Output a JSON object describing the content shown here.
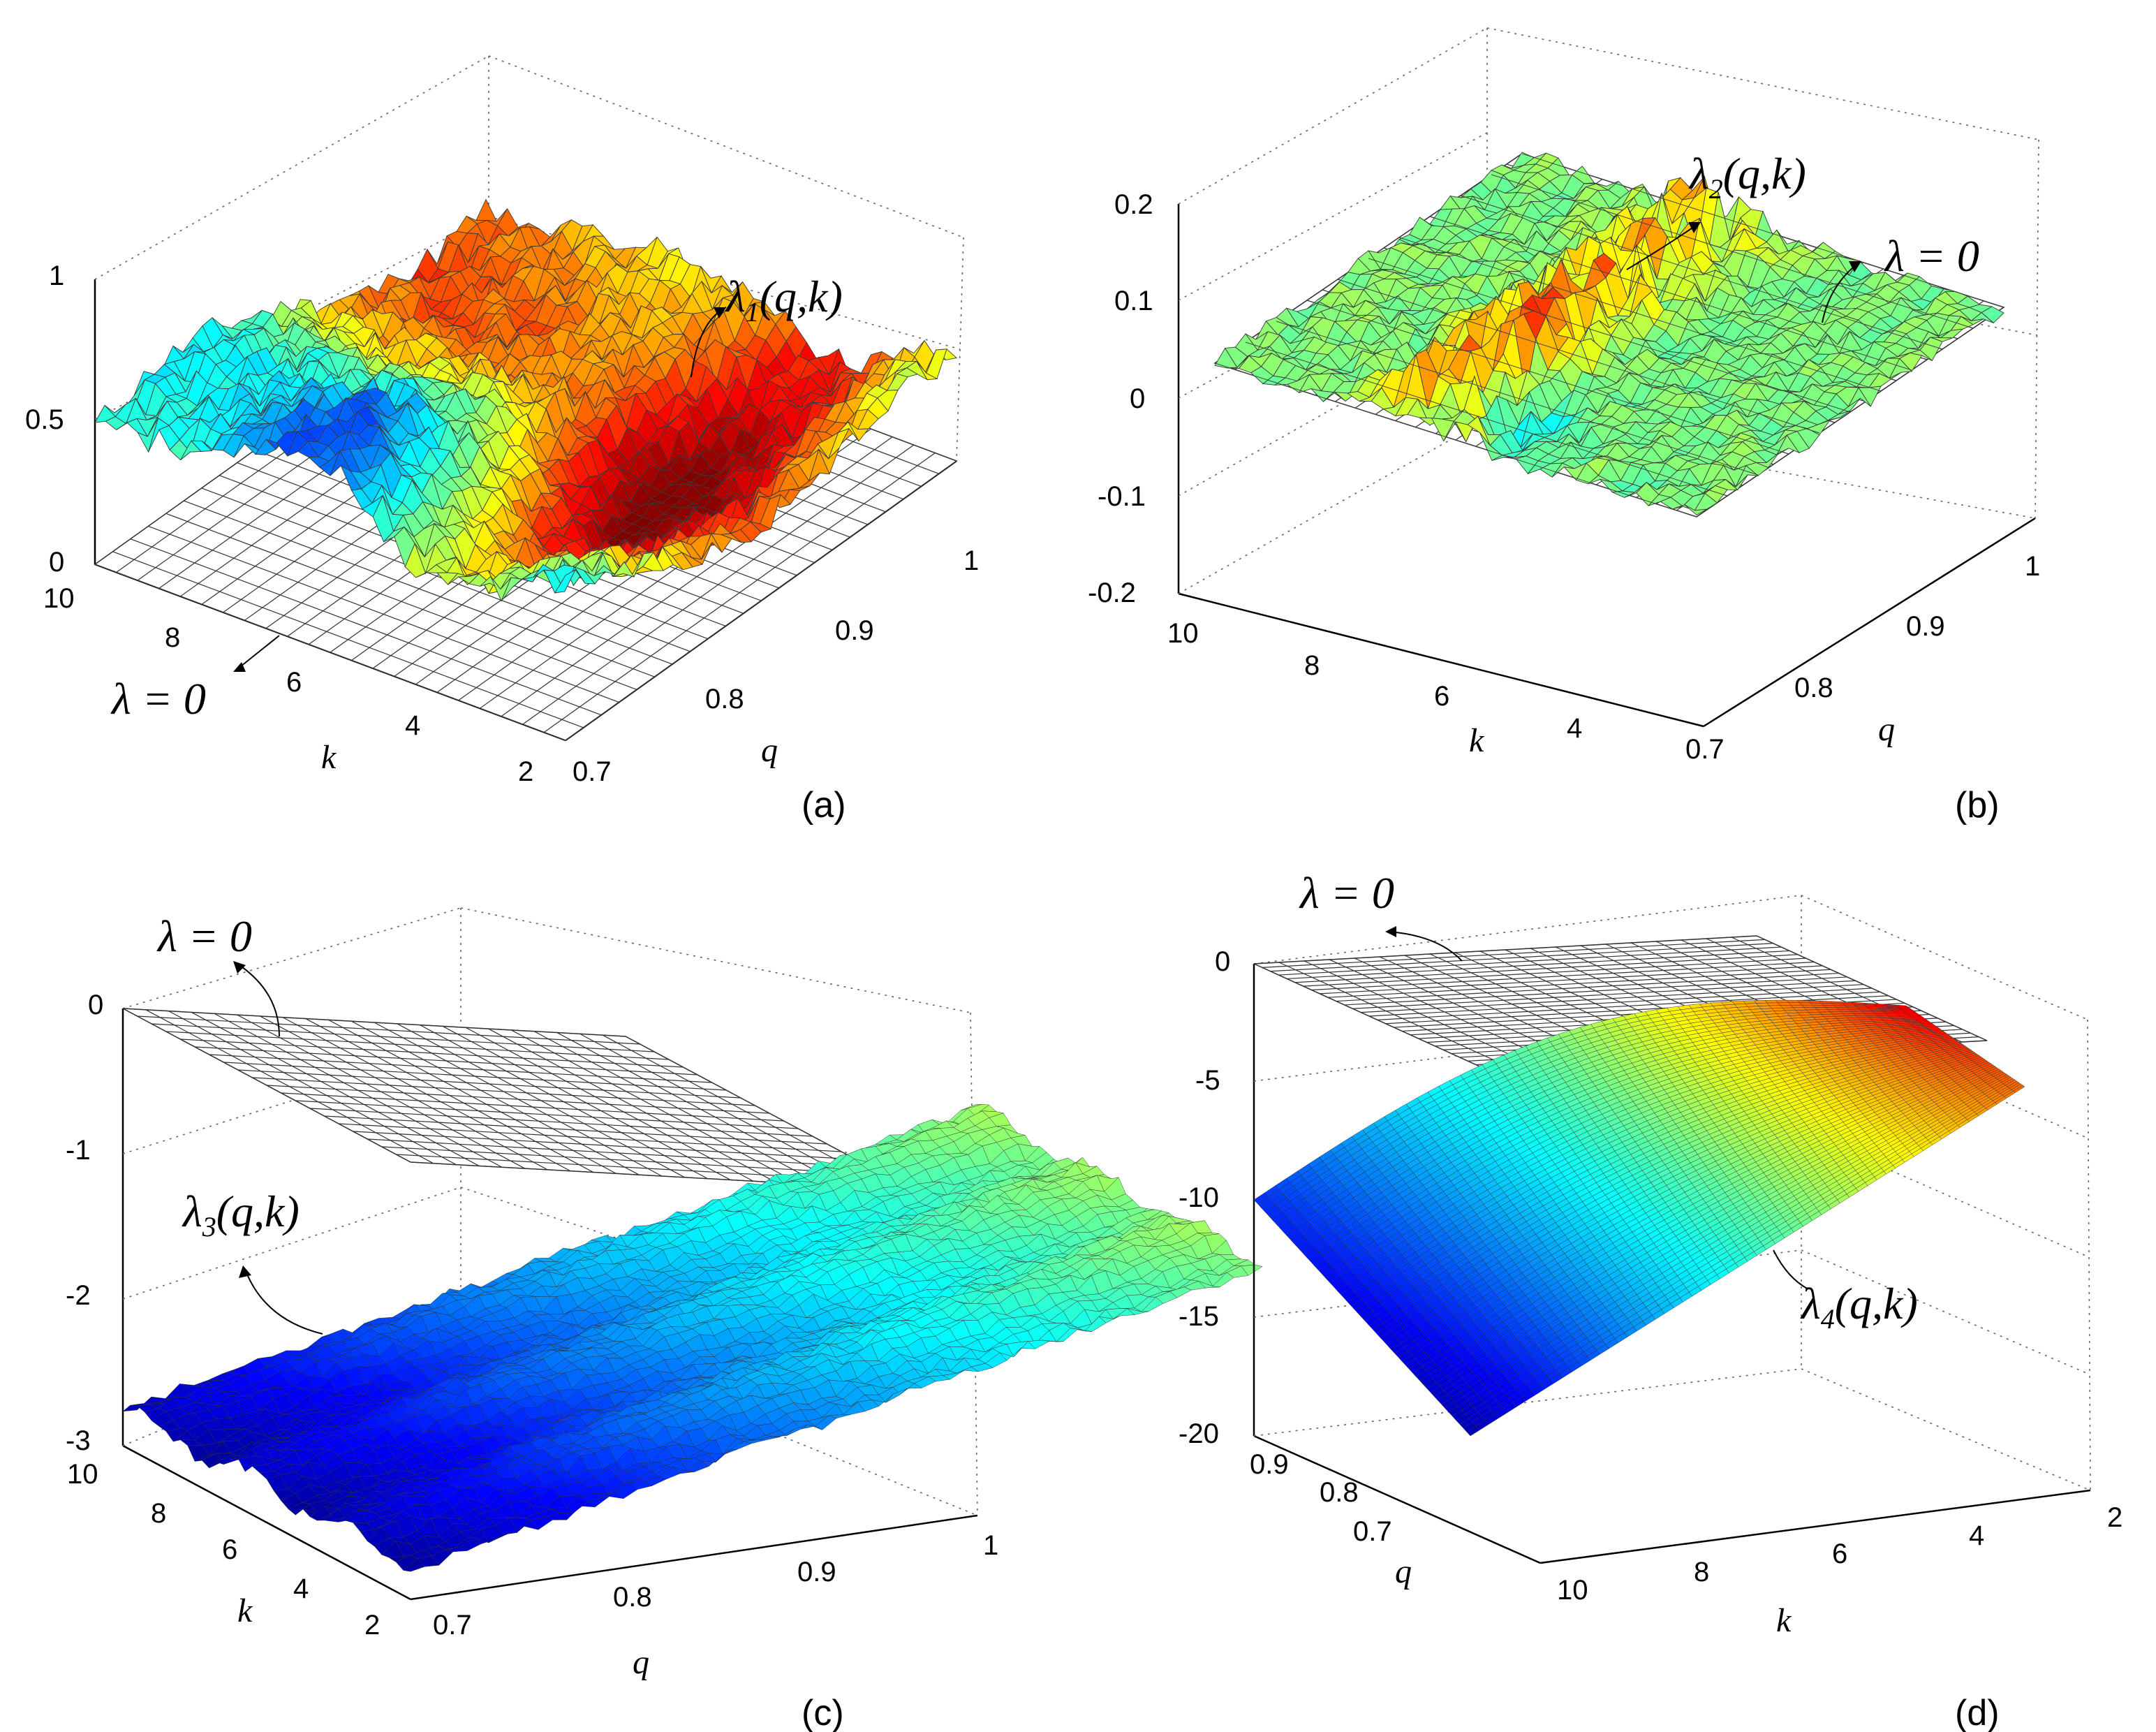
{
  "figure": {
    "panels": [
      {
        "panel_label": "(a)",
        "surface_label": "λ1(q,k)",
        "surface_symbol": "λ",
        "surface_subscript": "1",
        "surface_args": "(q,k)",
        "zero_plane_label": "λ = 0",
        "z_ticks": [
          "0",
          "0.5",
          "1"
        ],
        "k_ticks": [
          "10",
          "8",
          "6",
          "4",
          "2"
        ],
        "q_ticks": [
          "0.7",
          "0.8",
          "0.9",
          "1"
        ],
        "k_label": "k",
        "q_label": "q"
      },
      {
        "panel_label": "(b)",
        "surface_label": "λ2(q,k)",
        "surface_symbol": "λ",
        "surface_subscript": "2",
        "surface_args": "(q,k)",
        "zero_plane_label": "λ = 0",
        "z_ticks": [
          "-0.2",
          "-0.1",
          "0",
          "0.1",
          "0.2"
        ],
        "k_ticks": [
          "10",
          "8",
          "6",
          "4"
        ],
        "q_ticks": [
          "0.7",
          "0.8",
          "0.9",
          "1"
        ],
        "k_label": "k",
        "q_label": "q"
      },
      {
        "panel_label": "(c)",
        "surface_label": "λ3(q,k)",
        "surface_symbol": "λ",
        "surface_subscript": "3",
        "surface_args": "(q,k)",
        "zero_plane_label": "λ = 0",
        "z_ticks": [
          "-3",
          "-2",
          "-1",
          "0"
        ],
        "k_ticks": [
          "10",
          "8",
          "6",
          "4",
          "2"
        ],
        "q_ticks": [
          "0.7",
          "0.8",
          "0.9",
          "1"
        ],
        "k_label": "k",
        "q_label": "q"
      },
      {
        "panel_label": "(d)",
        "surface_label": "λ4(q,k)",
        "surface_symbol": "λ",
        "surface_subscript": "4",
        "surface_args": "(q,k)",
        "zero_plane_label": "λ = 0",
        "z_ticks": [
          "-20",
          "-15",
          "-10",
          "-5",
          "0"
        ],
        "k_ticks": [
          "10",
          "8",
          "6",
          "4",
          "2"
        ],
        "q_ticks": [
          "0.7",
          "0.8",
          "0.9"
        ],
        "k_label": "k",
        "q_label": "q"
      }
    ]
  },
  "chart_data": [
    {
      "type": "surface3d",
      "title": "(a)",
      "series": [
        {
          "name": "λ1(q,k)",
          "description_range_z": [
            0.2,
            0.8
          ],
          "typical_z": 0.45
        },
        {
          "name": "λ = 0",
          "z": 0
        }
      ],
      "xlabel": "q",
      "ylabel": "k",
      "zlabel": "",
      "xlim": [
        0.7,
        1.0
      ],
      "ylim": [
        2,
        10
      ],
      "zlim": [
        0,
        1
      ]
    },
    {
      "type": "surface3d",
      "title": "(b)",
      "series": [
        {
          "name": "λ2(q,k)",
          "description_range_z": [
            -0.2,
            0.18
          ],
          "typical_z": 0.0
        },
        {
          "name": "λ = 0",
          "z": 0
        }
      ],
      "xlabel": "q",
      "ylabel": "k",
      "zlabel": "",
      "xlim": [
        0.7,
        1.0
      ],
      "ylim": [
        2,
        10
      ],
      "zlim": [
        -0.2,
        0.2
      ]
    },
    {
      "type": "surface3d",
      "title": "(c)",
      "series": [
        {
          "name": "λ3(q,k)",
          "description_range_z": [
            -2.8,
            -1.4
          ],
          "typical_z": -2.0
        },
        {
          "name": "λ = 0",
          "z": 0
        }
      ],
      "xlabel": "q",
      "ylabel": "k",
      "zlabel": "",
      "xlim": [
        0.7,
        1.0
      ],
      "ylim": [
        2,
        10
      ],
      "zlim": [
        -3,
        0
      ]
    },
    {
      "type": "surface3d",
      "title": "(d)",
      "series": [
        {
          "name": "λ4(q,k)",
          "description_range_z": [
            -20,
            -3
          ],
          "typical_z": -10
        },
        {
          "name": "λ = 0",
          "z": 0
        }
      ],
      "xlabel": "q",
      "ylabel": "k",
      "zlabel": "",
      "xlim": [
        0.65,
        0.95
      ],
      "ylim": [
        2,
        10
      ],
      "zlim": [
        -20,
        0
      ]
    }
  ]
}
